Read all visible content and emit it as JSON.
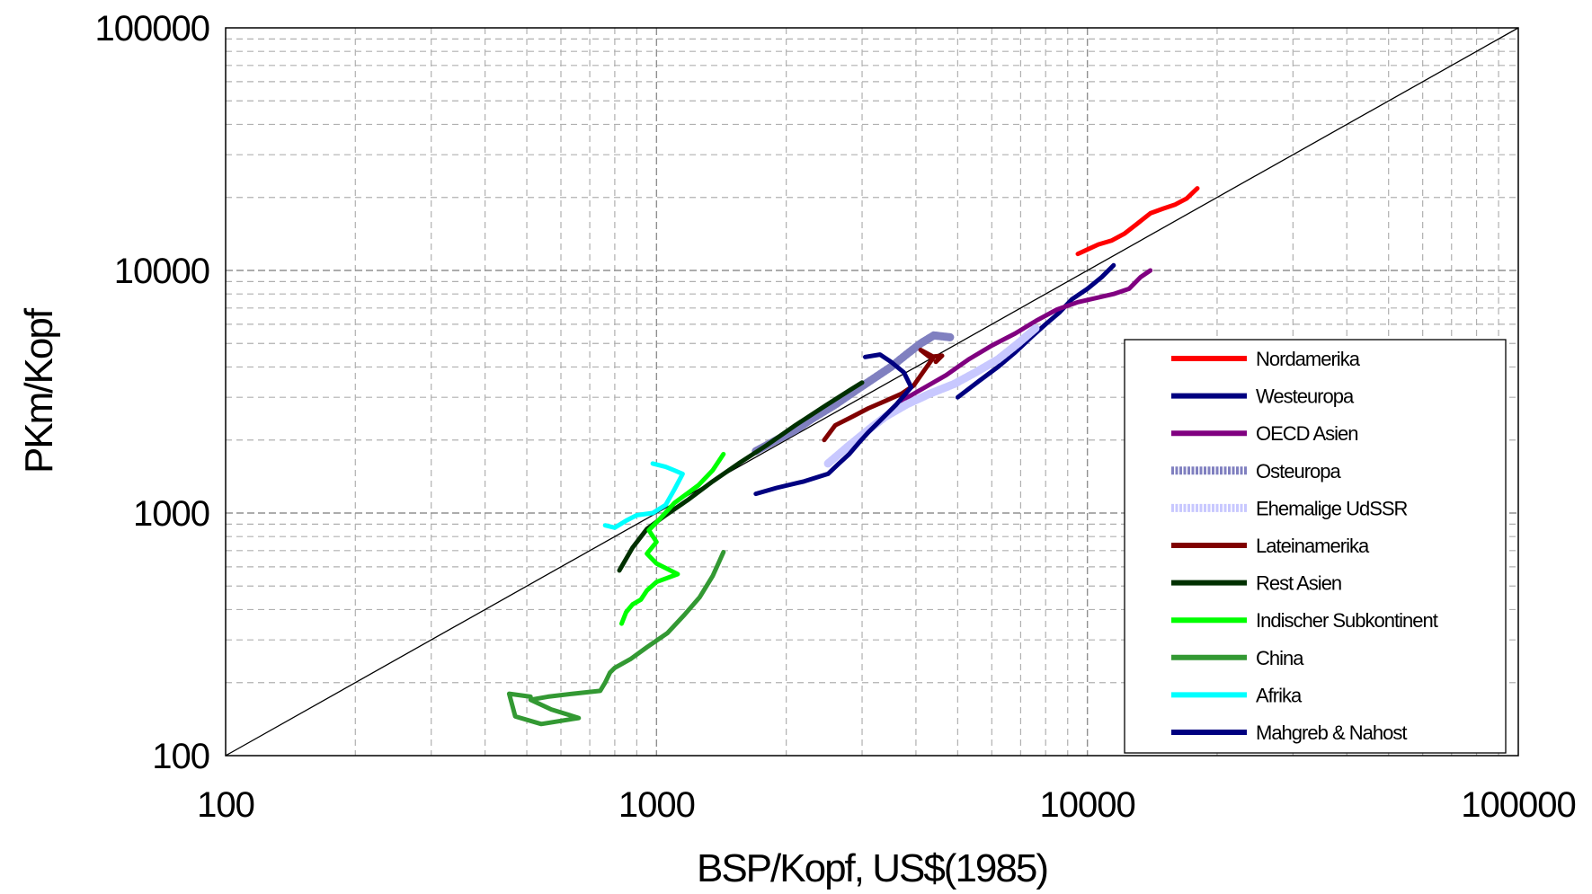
{
  "chart_data": {
    "type": "line",
    "title": "",
    "xlabel": "BSP/Kopf, US$(1985)",
    "ylabel": "PKm/Kopf",
    "xscale": "log",
    "yscale": "log",
    "xlim": [
      100,
      100000
    ],
    "ylim": [
      100,
      100000
    ],
    "x_ticks": [
      "100",
      "1000",
      "10000",
      "100000"
    ],
    "y_ticks": [
      "100",
      "1000",
      "10000",
      "100000"
    ],
    "grid": true,
    "legend": "right",
    "reference_line": {
      "x": [
        100,
        100000
      ],
      "y": [
        100,
        100000
      ],
      "color": "#000000"
    },
    "series": [
      {
        "name": "Nordamerika",
        "color": "#ff0000",
        "style": "solid",
        "x": [
          9500,
          10000,
          10600,
          11400,
          12200,
          13000,
          14000,
          15000,
          16000,
          17000,
          18000
        ],
        "y": [
          11700,
          12200,
          12800,
          13300,
          14200,
          15500,
          17200,
          18000,
          18700,
          19800,
          21800
        ]
      },
      {
        "name": "Westeuropa",
        "color": "#000080",
        "style": "solid",
        "x": [
          5000,
          5600,
          6200,
          6800,
          7400,
          8000,
          8600,
          9200,
          10000,
          10800,
          11500
        ],
        "y": [
          3000,
          3500,
          4000,
          4600,
          5300,
          6000,
          6700,
          7600,
          8400,
          9400,
          10500
        ]
      },
      {
        "name": "OECD Asien",
        "color": "#800080",
        "style": "solid",
        "x": [
          3700,
          4200,
          4700,
          5300,
          6000,
          6800,
          7600,
          8500,
          9500,
          10500,
          11500,
          12500,
          13300,
          14000
        ],
        "y": [
          2900,
          3300,
          3700,
          4300,
          4900,
          5500,
          6200,
          6900,
          7400,
          7700,
          8000,
          8400,
          9400,
          10000
        ]
      },
      {
        "name": "Osteuropa",
        "color": "#8080c0",
        "style": "wide",
        "x": [
          1700,
          1900,
          2100,
          2300,
          2600,
          2900,
          3200,
          3500,
          3800,
          4100,
          4400,
          4800
        ],
        "y": [
          1800,
          2000,
          2200,
          2450,
          2800,
          3200,
          3600,
          4000,
          4500,
          5000,
          5400,
          5300
        ]
      },
      {
        "name": "Ehemalige UdSSR",
        "color": "#c8c8ff",
        "style": "wide",
        "x": [
          2500,
          2800,
          3100,
          3400,
          3800,
          4300,
          4900,
          5500,
          6200,
          6900,
          7600
        ],
        "y": [
          1600,
          1900,
          2200,
          2500,
          2800,
          3100,
          3400,
          3800,
          4300,
          5000,
          5800
        ]
      },
      {
        "name": "Lateinamerika",
        "color": "#800000",
        "style": "solid",
        "x": [
          2450,
          2600,
          2850,
          3100,
          3400,
          3700,
          3950,
          4150,
          4400,
          4100,
          4300,
          4600,
          4450
        ],
        "y": [
          2000,
          2300,
          2500,
          2700,
          2900,
          3100,
          3350,
          3800,
          4400,
          4700,
          4400,
          4450,
          4200
        ]
      },
      {
        "name": "Rest Asien",
        "color": "#003000",
        "style": "solid",
        "x": [
          820,
          880,
          950,
          1050,
          1180,
          1350,
          1550,
          1800,
          2100,
          2450,
          2800,
          3000
        ],
        "y": [
          580,
          720,
          860,
          980,
          1130,
          1350,
          1600,
          1900,
          2300,
          2750,
          3200,
          3450
        ]
      },
      {
        "name": "Indischer Subkontinent",
        "color": "#00ff00",
        "style": "solid",
        "x": [
          830,
          850,
          880,
          920,
          950,
          1000,
          1120,
          1000,
          950,
          1000,
          960,
          1020,
          1100,
          1250,
          1350,
          1430
        ],
        "y": [
          350,
          390,
          420,
          440,
          480,
          520,
          560,
          620,
          680,
          760,
          850,
          950,
          1100,
          1300,
          1500,
          1750
        ]
      },
      {
        "name": "China",
        "color": "#339933",
        "style": "solid",
        "x": [
          510,
          455,
          470,
          540,
          660,
          570,
          510,
          560,
          640,
          740,
          760,
          780,
          800,
          870,
          950,
          1060,
          1160,
          1260,
          1350,
          1430
        ],
        "y": [
          175,
          180,
          145,
          135,
          143,
          155,
          170,
          175,
          180,
          185,
          200,
          220,
          230,
          250,
          280,
          320,
          380,
          450,
          550,
          690
        ]
      },
      {
        "name": "Afrika",
        "color": "#00ffff",
        "style": "solid",
        "x": [
          760,
          800,
          850,
          900,
          980,
          1050,
          1100,
          1150,
          1100,
          1050,
          980
        ],
        "y": [
          890,
          870,
          930,
          980,
          1000,
          1080,
          1250,
          1450,
          1500,
          1550,
          1600
        ]
      },
      {
        "name": "Mahgreb & Nahost",
        "color": "#000080",
        "style": "solid",
        "x": [
          1700,
          1900,
          2200,
          2500,
          2650,
          2800,
          2950,
          3100,
          3300,
          3600,
          3900,
          3750,
          3500,
          3300,
          3050
        ],
        "y": [
          1200,
          1270,
          1350,
          1450,
          1600,
          1750,
          1950,
          2150,
          2400,
          2800,
          3300,
          3800,
          4200,
          4500,
          4400
        ]
      }
    ]
  }
}
